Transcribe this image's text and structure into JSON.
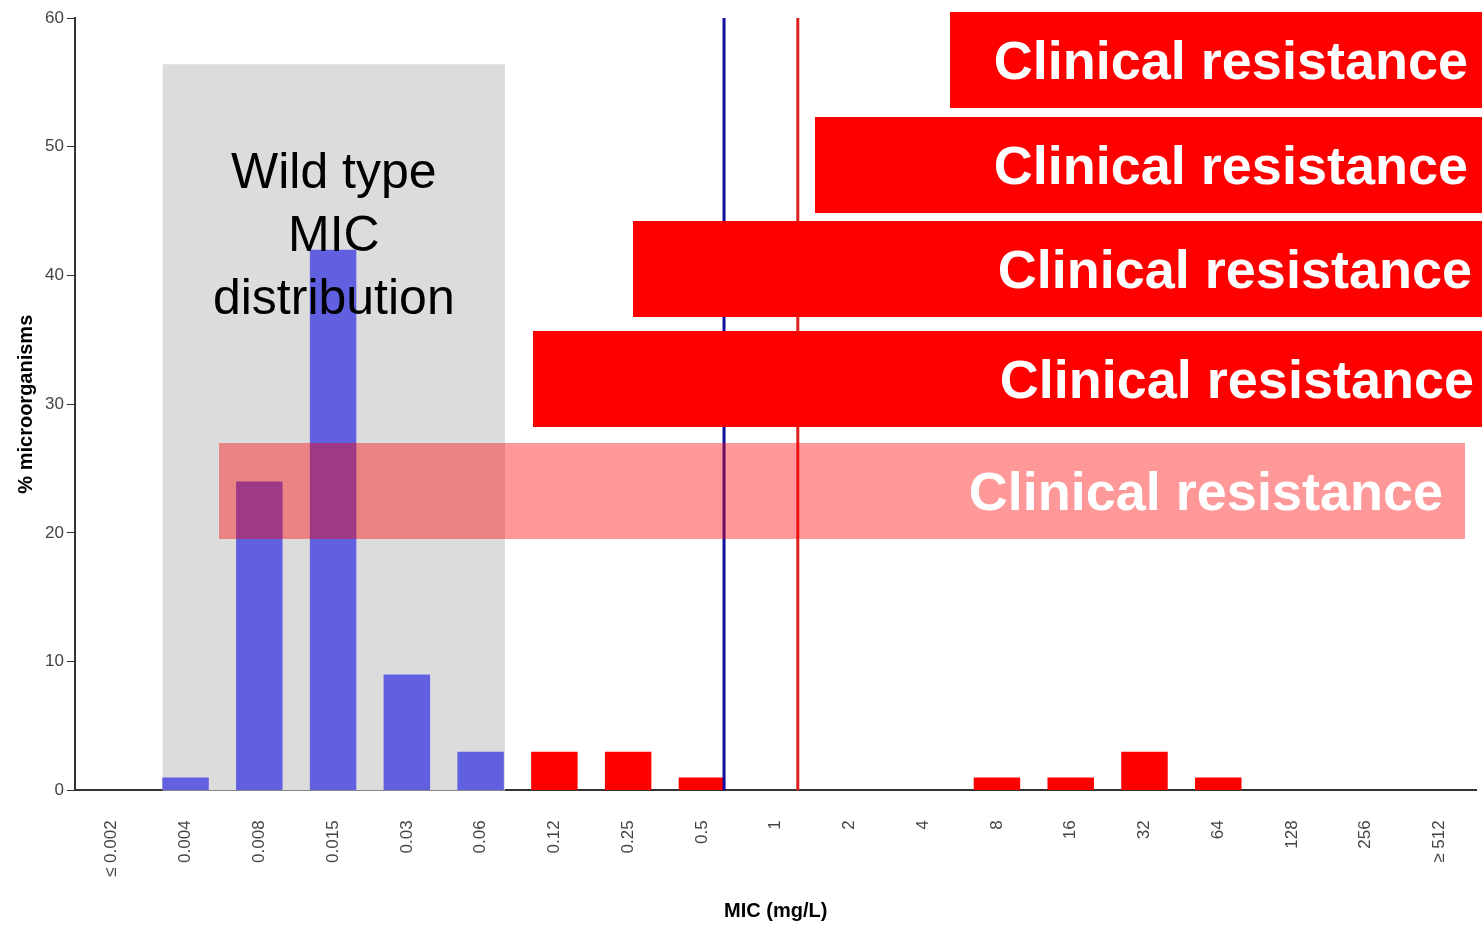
{
  "chart_data": {
    "type": "bar",
    "xlabel": "MIC (mg/L)",
    "ylabel": "% microorganisms",
    "categories": [
      "≤ 0.002",
      "0.004",
      "0.008",
      "0.015",
      "0.03",
      "0.06",
      "0.12",
      "0.25",
      "0.5",
      "1",
      "2",
      "4",
      "8",
      "16",
      "32",
      "64",
      "128",
      "256",
      "≥ 512"
    ],
    "values": [
      0,
      1,
      24,
      42,
      9,
      3,
      3,
      3,
      1,
      0,
      0,
      0,
      1,
      1,
      3,
      1,
      0,
      0,
      0
    ],
    "colors": [
      "#6060e0",
      "#6060e0",
      "#6060e0",
      "#6060e0",
      "#6060e0",
      "#6060e0",
      "#ff0000",
      "#ff0000",
      "#ff0000",
      "#ff0000",
      "#ff0000",
      "#ff0000",
      "#ff0000",
      "#ff0000",
      "#ff0000",
      "#ff0000",
      "#ff0000",
      "#ff0000",
      "#ff0000"
    ],
    "ylim": [
      0,
      60
    ],
    "yticks": [
      0,
      10,
      20,
      30,
      40,
      50,
      60
    ],
    "grid": false,
    "legend": false,
    "bands": [
      {
        "axis": "x",
        "from": "0.004",
        "to": "0.06",
        "label": "Wild type MIC distribution",
        "color": "#dcdcdc"
      }
    ],
    "ref_lines": [
      {
        "axis": "x",
        "value": "0.5",
        "color": "#1010a0"
      },
      {
        "axis": "x",
        "value": "1",
        "color": "#e02020"
      }
    ],
    "annotations": [
      "Clinical resistance",
      "Clinical resistance",
      "Clinical resistance",
      "Clinical resistance",
      "Clinical resistance"
    ]
  }
}
